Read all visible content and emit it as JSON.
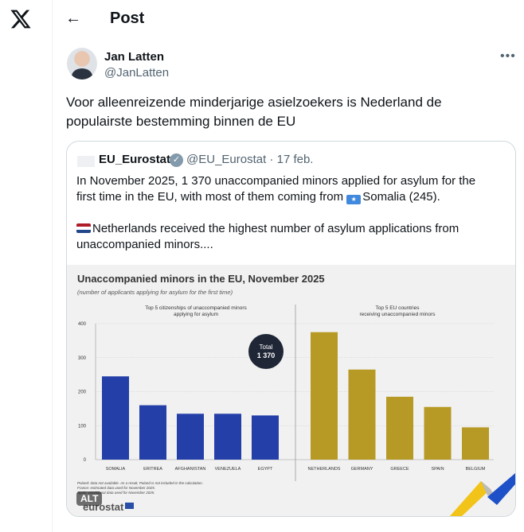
{
  "header": {
    "title": "Post",
    "back_icon": "arrow-left-icon"
  },
  "author": {
    "name": "Jan Latten",
    "handle": "@JanLatten"
  },
  "post": {
    "lines": [
      "Voor alleenreizende minderjarige asielzoekers is Nederland de",
      "populairste bestemming binnen de EU"
    ]
  },
  "quote": {
    "name": "EU_Eurostat",
    "handle": "@EU_Eurostat · 17 feb.",
    "line1": "In November 2025, 1 370 unaccompanied minors applied for asylum for the",
    "line2a": "first time in the EU, with most of them coming from ",
    "line2b": "Somalia (245).",
    "line3": "Netherlands received the highest number of asylum applications from",
    "line4": "unaccompanied minors....",
    "avatar_text": "eurostat"
  },
  "image": {
    "alt_badge": "ALT",
    "logo": "eurostat"
  },
  "chart_data": {
    "type": "bar",
    "title": "Unaccompanied minors in the EU, November 2025",
    "subtitle": "(number of applicants applying for asylum for the first time)",
    "ylim": [
      0,
      400
    ],
    "yticks": [
      0,
      100,
      200,
      300,
      400
    ],
    "grid": true,
    "panels": [
      {
        "title1": "Top 5 citizenships of unaccompanied minors",
        "title2": "applying for asylum",
        "categories": [
          "SOMALIA",
          "ERITREA",
          "AFGHANISTAN",
          "VENEZUELA",
          "EGYPT"
        ],
        "values": [
          245,
          160,
          135,
          135,
          130
        ],
        "color": "#2440a8"
      },
      {
        "title1": "Top 5 EU countries",
        "title2": "receiving unaccompanied minors",
        "categories": [
          "NETHERLANDS",
          "GERMANY",
          "GREECE",
          "SPAIN",
          "BELGIUM"
        ],
        "values": [
          375,
          265,
          185,
          155,
          95
        ],
        "color": "#b79a25"
      }
    ],
    "annotation": {
      "line1": "Total",
      "line2": "1 370"
    },
    "notes": [
      "Poland: data not available. As a result, Poland is not included in the calculation.",
      "France: estimated data used for November 2025.",
      "Spain: provisional data used for November 2025."
    ]
  }
}
